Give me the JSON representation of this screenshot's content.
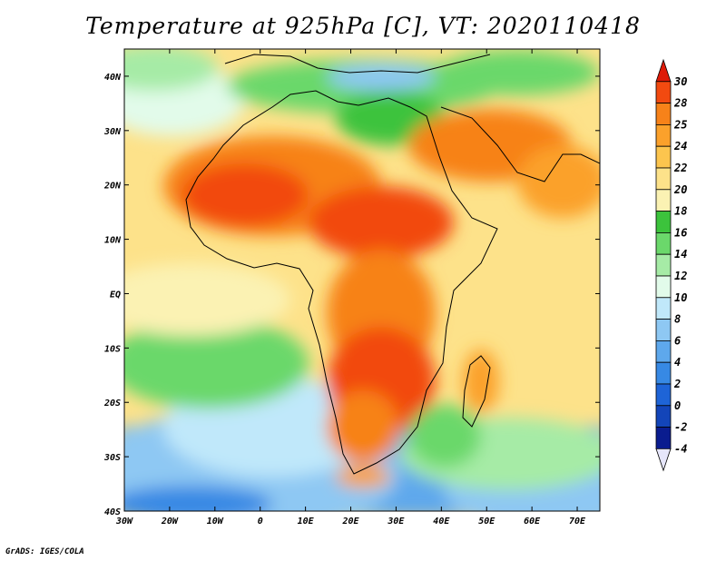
{
  "title": "Temperature at 925hPa [C], VT: 2020110418",
  "credit": "GrADS: IGES/COLA",
  "map": {
    "region": "Africa",
    "projection": "lat-lon",
    "lon_range": [
      -30,
      75
    ],
    "lat_range": [
      -40,
      45
    ],
    "x_ticks": [
      {
        "lon": -30,
        "label": "30W"
      },
      {
        "lon": -20,
        "label": "20W"
      },
      {
        "lon": -10,
        "label": "10W"
      },
      {
        "lon": 0,
        "label": "0"
      },
      {
        "lon": 10,
        "label": "10E"
      },
      {
        "lon": 20,
        "label": "20E"
      },
      {
        "lon": 30,
        "label": "30E"
      },
      {
        "lon": 40,
        "label": "40E"
      },
      {
        "lon": 50,
        "label": "50E"
      },
      {
        "lon": 60,
        "label": "60E"
      },
      {
        "lon": 70,
        "label": "70E"
      }
    ],
    "y_ticks": [
      {
        "lat": 40,
        "label": "40N"
      },
      {
        "lat": 30,
        "label": "30N"
      },
      {
        "lat": 20,
        "label": "20N"
      },
      {
        "lat": 10,
        "label": "10N"
      },
      {
        "lat": 0,
        "label": "EQ"
      },
      {
        "lat": -10,
        "label": "10S"
      },
      {
        "lat": -20,
        "label": "20S"
      },
      {
        "lat": -30,
        "label": "30S"
      },
      {
        "lat": -40,
        "label": "40S"
      }
    ]
  },
  "colorbar": {
    "unit": "C",
    "levels": [
      30,
      28,
      25,
      24,
      22,
      20,
      18,
      16,
      14,
      12,
      10,
      8,
      6,
      4,
      2,
      0,
      -2,
      -4
    ],
    "colors_top_to_bottom": [
      "#de1a08",
      "#f24a10",
      "#f78219",
      "#fba12b",
      "#fcc54e",
      "#fde28a",
      "#fbf2b3",
      "#3cc33c",
      "#6bd86b",
      "#a6eba6",
      "#e2fbea",
      "#c0e8fa",
      "#8ec8f3",
      "#5ea8ec",
      "#3789e4",
      "#1e64d7",
      "#1345b9",
      "#0a1c8f",
      "#e6e6fb"
    ]
  }
}
